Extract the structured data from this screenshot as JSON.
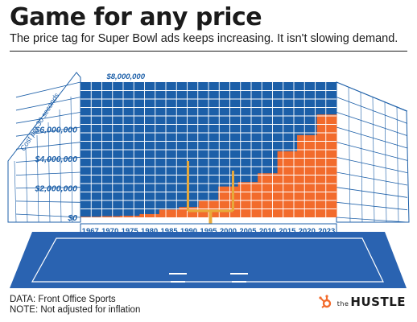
{
  "header": {
    "title": "Game for any price",
    "subtitle": "The price tag for Super Bowl ads keeps increasing. It isn't slowing demand."
  },
  "footer": {
    "source": "DATA: Front Office Sports",
    "note": "NOTE: Not adjusted for inflation",
    "brand_prefix": "the",
    "brand_name": "HUSTLE"
  },
  "colors": {
    "bar": "#f26b2c",
    "stadium_seats": "#1c5fa8",
    "grid_line": "#ffffff",
    "field": "#2a63b1",
    "goalpost": "#e8a93a",
    "brand_accent": "#f26b2c"
  },
  "icons": {
    "brand": "hubspot-sprocket-icon"
  },
  "chart_data": {
    "type": "bar",
    "ylabel": "Cost per 30 seconds",
    "ylim": [
      0,
      8000000
    ],
    "y_ticks": [
      0,
      2000000,
      4000000,
      6000000,
      8000000
    ],
    "y_tick_labels": [
      "$0",
      "$2,000,000",
      "$4,000,000",
      "$6,000,000",
      "$8,000,000"
    ],
    "x_tick_labels": [
      "1967",
      "1970",
      "1975",
      "1980",
      "1985",
      "1990",
      "1995",
      "2000",
      "2005",
      "2010",
      "2015",
      "2020",
      "2023"
    ],
    "categories": [
      "1967",
      "1970",
      "1975",
      "1980",
      "1985",
      "1990",
      "1995",
      "2000",
      "2005",
      "2010",
      "2015",
      "2020",
      "2023"
    ],
    "values": [
      42000,
      78000,
      107000,
      222000,
      525000,
      700000,
      1150000,
      2100000,
      2400000,
      3000000,
      4500000,
      5600000,
      7000000
    ]
  }
}
